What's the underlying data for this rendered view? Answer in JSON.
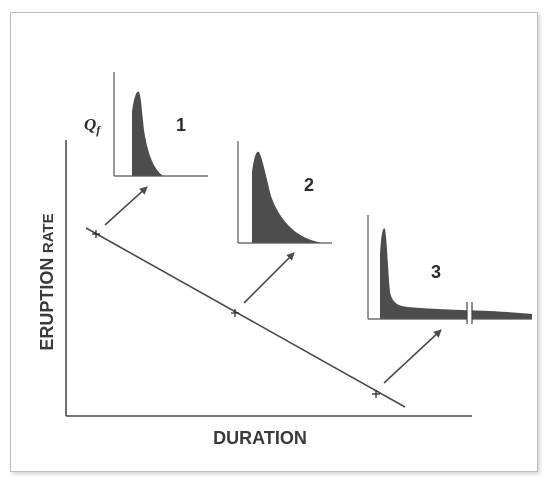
{
  "axes": {
    "x_label": "DURATION",
    "y_label_main": "ERUPTION",
    "y_label_small": "RATE"
  },
  "inset_y_symbol": "Q",
  "inset_y_subscript": "f",
  "insets": [
    {
      "label": "1"
    },
    {
      "label": "2"
    },
    {
      "label": "3"
    }
  ],
  "colors": {
    "ink": "#3a3a3a",
    "fill": "#4d4d4d",
    "frame": "#bdbdbd"
  }
}
